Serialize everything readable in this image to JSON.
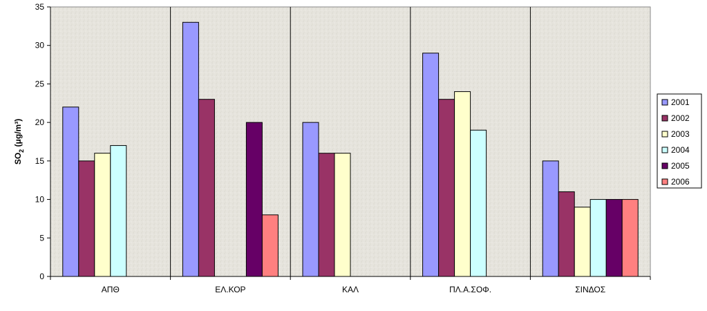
{
  "chart_data": {
    "type": "bar",
    "categories": [
      "ΑΠΘ",
      "ΕΛ.ΚΟΡ",
      "ΚΑΛ",
      "ΠΛ.Α.ΣΟΦ.",
      "ΣΙΝΔΟΣ"
    ],
    "series": [
      {
        "name": "2001",
        "color": "#9999ff",
        "values": [
          22,
          33,
          20,
          29,
          15
        ]
      },
      {
        "name": "2002",
        "color": "#993366",
        "values": [
          15,
          23,
          16,
          23,
          11
        ]
      },
      {
        "name": "2003",
        "color": "#ffffcc",
        "values": [
          16,
          null,
          16,
          24,
          9
        ]
      },
      {
        "name": "2004",
        "color": "#ccffff",
        "values": [
          17,
          null,
          null,
          19,
          10
        ]
      },
      {
        "name": "2005",
        "color": "#660066",
        "values": [
          null,
          20,
          null,
          null,
          10
        ]
      },
      {
        "name": "2006",
        "color": "#ff8080",
        "values": [
          null,
          8,
          null,
          null,
          10
        ]
      }
    ],
    "ylabel": "SO",
    "ylabel_sub": "2",
    "ylabel_unit": " (μg/m³)",
    "ylim": [
      0,
      35
    ],
    "yticks": [
      0,
      5,
      10,
      15,
      20,
      25,
      30,
      35
    ],
    "legend_position": "right",
    "plot_background": "#e8e6e0"
  }
}
